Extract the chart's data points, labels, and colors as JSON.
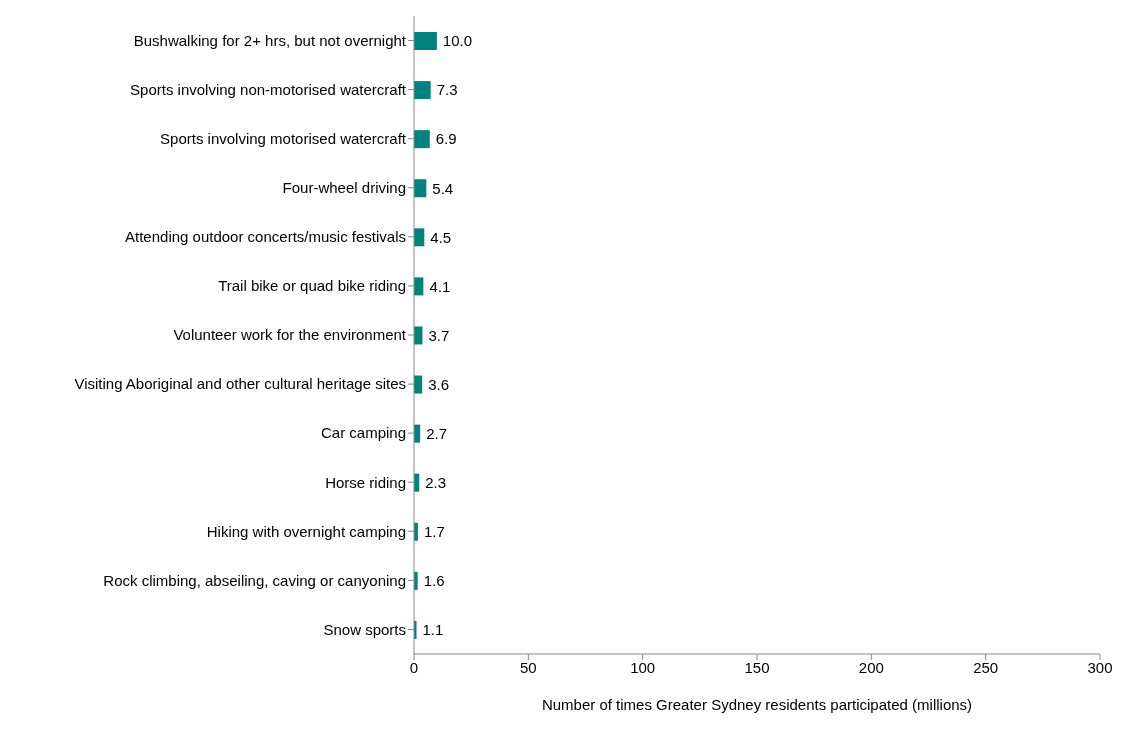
{
  "chart_data": {
    "type": "bar",
    "orientation": "horizontal",
    "xlabel": "Number of times Greater Sydney residents participated (millions)",
    "categories": [
      "Bushwalking for 2+ hrs, but not overnight",
      "Sports involving non-motorised watercraft",
      "Sports involving motorised watercraft",
      "Four-wheel driving",
      "Attending outdoor concerts/music festivals",
      "Trail bike or quad bike riding",
      "Volunteer work for the environment",
      "Visiting Aboriginal and other cultural heritage sites",
      "Car camping",
      "Horse riding",
      "Hiking with overnight camping",
      "Rock climbing, abseiling, caving or canyoning",
      "Snow sports"
    ],
    "values": [
      10.0,
      7.3,
      6.9,
      5.4,
      4.5,
      4.1,
      3.7,
      3.6,
      2.7,
      2.3,
      1.7,
      1.6,
      1.1
    ],
    "value_labels": [
      "10.0",
      "7.3",
      "6.9",
      "5.4",
      "4.5",
      "4.1",
      "3.7",
      "3.6",
      "2.7",
      "2.3",
      "1.7",
      "1.6",
      "1.1"
    ],
    "color": "#00827f",
    "xlim": [
      0,
      300
    ],
    "xticks": [
      0,
      50,
      100,
      150,
      200,
      250,
      300
    ],
    "grid": false,
    "legend": false
  }
}
